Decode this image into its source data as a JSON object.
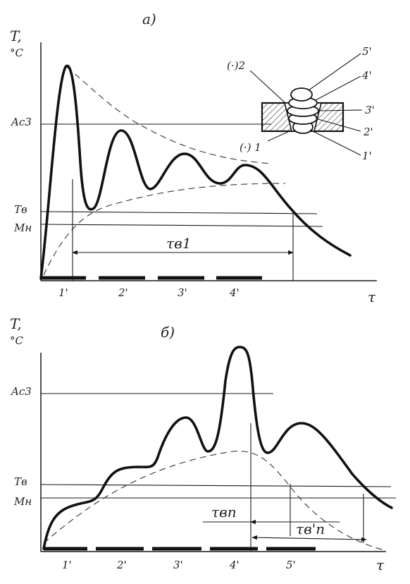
{
  "panel_a": {
    "title": "а)",
    "y_axis": "T,\n°C",
    "x_axis": "τ",
    "levels": {
      "ac3": "Ac3",
      "tb": "Tв",
      "mn": "Mн"
    },
    "interval": "τв1",
    "passes": [
      "1'",
      "2'",
      "3'",
      "4'"
    ],
    "inset": {
      "points": [
        "(·)2",
        "(·) 1"
      ],
      "layers": [
        "5'",
        "4'",
        "3'",
        "2'",
        "1'"
      ]
    }
  },
  "panel_b": {
    "title": "б)",
    "y_axis": "T,\n°C",
    "x_axis": "τ",
    "levels": {
      "ac3": "Ac3",
      "tb": "Tв",
      "mn": "Mн"
    },
    "intervals": [
      "τвп",
      "τв'п"
    ],
    "passes": [
      "1'",
      "2'",
      "3'",
      "4'",
      "5'"
    ]
  }
}
